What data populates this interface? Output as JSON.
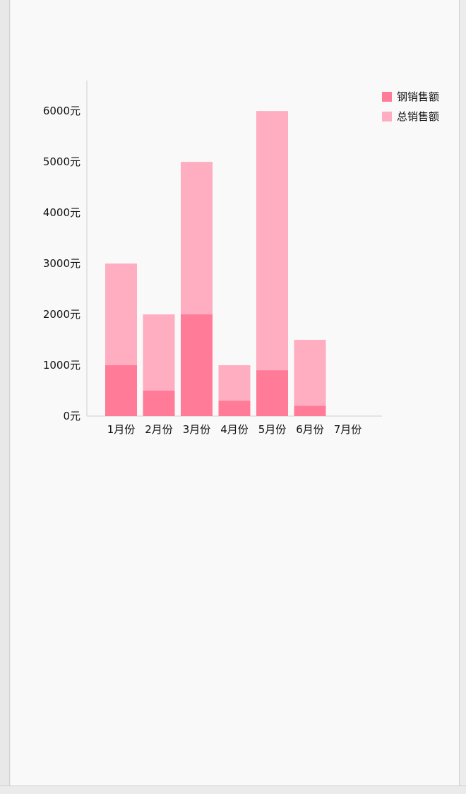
{
  "window": {
    "surface_color": "#f9f9f9"
  },
  "chart_data": {
    "type": "bar",
    "title": "",
    "xlabel": "",
    "ylabel": "",
    "categories": [
      "1月份",
      "2月份",
      "3月份",
      "4月份",
      "5月份",
      "6月份",
      "7月份"
    ],
    "series": [
      {
        "name": "钢销售额",
        "values": [
          1000,
          500,
          2000,
          300,
          900,
          200,
          null
        ],
        "color": "#ff7b98"
      },
      {
        "name": "总销售额",
        "values": [
          3000,
          2000,
          5000,
          1000,
          6000,
          1500,
          null
        ],
        "color": "#ffadc0"
      }
    ],
    "y_ticks": [
      0,
      1000,
      2000,
      3000,
      4000,
      5000,
      6000
    ],
    "y_tick_labels": [
      "0元",
      "1000元",
      "2000元",
      "3000元",
      "4000元",
      "5000元",
      "6000元"
    ],
    "ylim": [
      0,
      6600
    ],
    "legend_position": "top-right",
    "grid": false,
    "axis_color": "#cfcfcf"
  }
}
